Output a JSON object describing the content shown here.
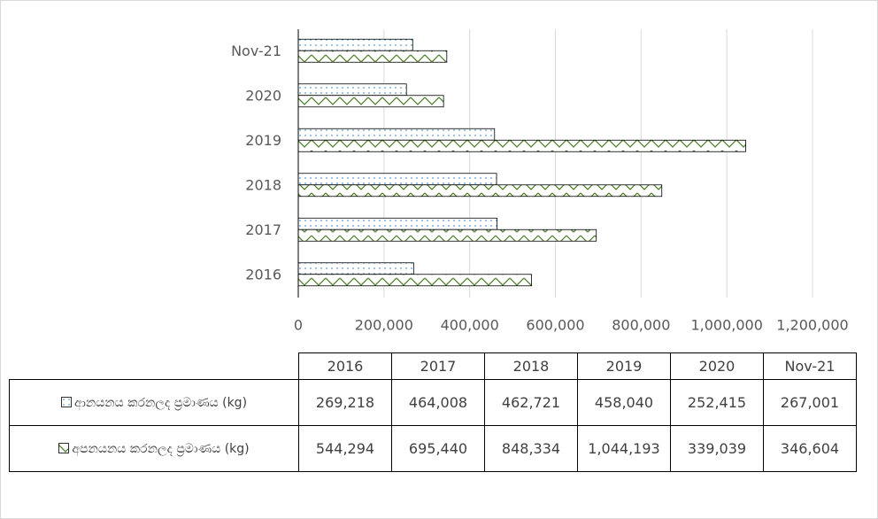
{
  "chart_data": {
    "type": "bar",
    "orientation": "horizontal",
    "categories": [
      "2016",
      "2017",
      "2018",
      "2019",
      "2020",
      "Nov-21"
    ],
    "series": [
      {
        "name": "ආනයනය කරනලද ප්‍රමාණය (kg)",
        "color": "#5b9bd5",
        "pattern": "dots",
        "values": [
          269218,
          464008,
          462721,
          458040,
          252415,
          267001
        ],
        "value_labels": [
          "269,218",
          "464,008",
          "462,721",
          "458,040",
          "252,415",
          "267,001"
        ]
      },
      {
        "name": "අපනයනය කරනලද ප්‍රමාණය (kg)",
        "color": "#548235",
        "pattern": "zigzag",
        "values": [
          544294,
          695440,
          848334,
          1044193,
          339039,
          346604
        ],
        "value_labels": [
          "544,294",
          "695,440",
          "848,334",
          "1,044,193",
          "339,039",
          "346,604"
        ]
      }
    ],
    "xlim": [
      0,
      1200000
    ],
    "xticks": [
      0,
      {
        "value": 200000,
        "label": "200,000"
      },
      {
        "value": 400000,
        "label": "400,000"
      },
      {
        "value": 600000,
        "label": "600,000"
      },
      {
        "value": 800000,
        "label": "800,000"
      },
      {
        "value": 1000000,
        "label": "1,000,000"
      },
      {
        "value": 1200000,
        "label": "1,200,000"
      }
    ],
    "grid": true,
    "data_table": true
  }
}
